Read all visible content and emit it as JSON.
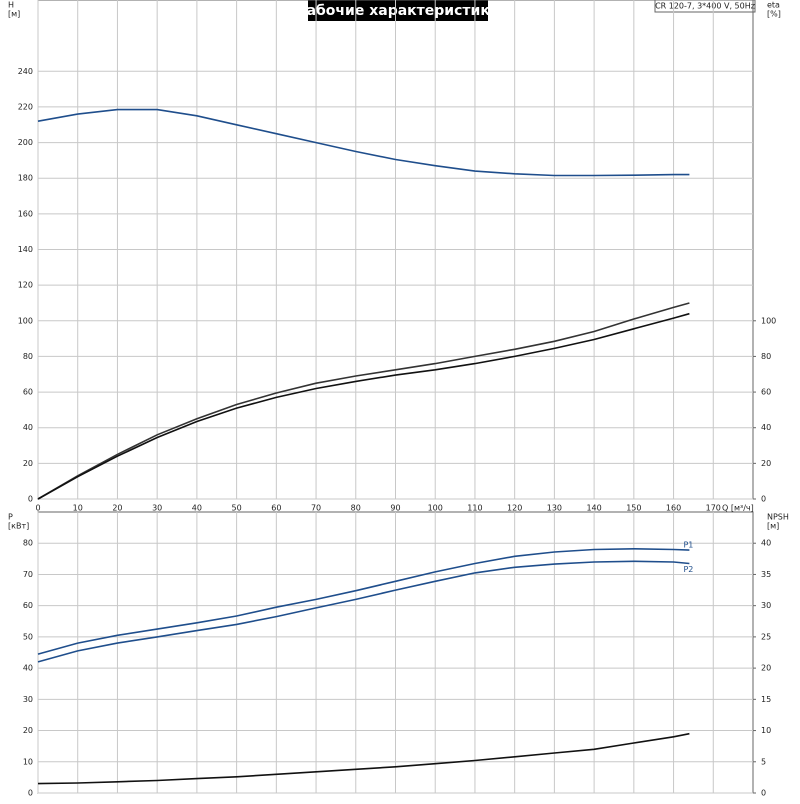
{
  "chart_data": [
    {
      "type": "line",
      "title": "Рабочие характеристики",
      "annotation": "CR 120-7, 3*400 V, 50Hz",
      "ylabel": "H",
      "yunit": "[м]",
      "y2label": "eta",
      "y2unit": "[%]",
      "xlabel": "Q [м³/ч]",
      "x": [
        0,
        10,
        20,
        30,
        40,
        50,
        60,
        70,
        80,
        90,
        100,
        110,
        120,
        130,
        140,
        150,
        160,
        164
      ],
      "xlim": [
        0,
        180
      ],
      "xticks": [
        0,
        10,
        20,
        30,
        40,
        50,
        60,
        70,
        80,
        90,
        100,
        110,
        120,
        130,
        140,
        150,
        160,
        170
      ],
      "ylim": [
        0,
        280
      ],
      "yticks": [
        0,
        20,
        40,
        60,
        80,
        100,
        120,
        140,
        160,
        180,
        200,
        220,
        240
      ],
      "y2lim": [
        0,
        280
      ],
      "y2ticks": [
        0,
        20,
        40,
        60,
        80,
        100
      ],
      "grid": true,
      "xtick_labels": true,
      "series": [
        {
          "color": "#1f4e8c",
          "values": [
            212,
            216,
            218.5,
            218.5,
            215,
            210,
            205,
            200,
            195,
            190.5,
            187,
            184,
            182.5,
            181.5,
            181.5,
            181.7,
            182,
            182
          ]
        },
        {
          "color": "#333333",
          "axis": "y2",
          "values": [
            0,
            13,
            25,
            36,
            45,
            53,
            59.5,
            65,
            69,
            72.5,
            76,
            80,
            84,
            88.5,
            94,
            101,
            107.5,
            110
          ]
        },
        {
          "color": "#111111",
          "axis": "y2",
          "values": [
            0,
            12.5,
            24,
            34.5,
            43.5,
            51,
            57,
            62,
            66,
            69.5,
            72.5,
            76,
            80,
            84.5,
            89.5,
            95.5,
            101.5,
            104
          ]
        }
      ]
    },
    {
      "type": "line",
      "ylabel": "P",
      "yunit": "[кВт]",
      "y2label": "NPSH",
      "y2unit": "[м]",
      "x": [
        0,
        10,
        20,
        30,
        40,
        50,
        60,
        70,
        80,
        90,
        100,
        110,
        120,
        130,
        140,
        150,
        160,
        164
      ],
      "xlim": [
        0,
        180
      ],
      "xticks": [
        0,
        10,
        20,
        30,
        40,
        50,
        60,
        70,
        80,
        90,
        100,
        110,
        120,
        130,
        140,
        150,
        160,
        170
      ],
      "ylim": [
        0,
        90
      ],
      "yticks": [
        0,
        10,
        20,
        30,
        40,
        50,
        60,
        70,
        80
      ],
      "y2lim": [
        0,
        45
      ],
      "y2ticks": [
        0,
        5,
        10,
        15,
        20,
        25,
        30,
        35,
        40
      ],
      "grid": true,
      "xtick_labels": false,
      "series": [
        {
          "name": "P1",
          "color": "#1f4e8c",
          "values": [
            44.5,
            48,
            50.5,
            52.5,
            54.5,
            56.7,
            59.5,
            62,
            64.8,
            67.8,
            70.8,
            73.5,
            75.8,
            77.2,
            78,
            78.2,
            78,
            77.8
          ]
        },
        {
          "name": "P2",
          "color": "#1f4e8c",
          "values": [
            42,
            45.5,
            48,
            50,
            52,
            54,
            56.5,
            59.3,
            62,
            65,
            67.8,
            70.5,
            72.3,
            73.3,
            74,
            74.2,
            74,
            73.5
          ]
        },
        {
          "color": "#111111",
          "axis": "y2",
          "values": [
            1.5,
            1.6,
            1.8,
            2,
            2.3,
            2.6,
            3,
            3.4,
            3.8,
            4.2,
            4.7,
            5.2,
            5.8,
            6.4,
            7,
            8,
            9,
            9.5
          ]
        }
      ]
    }
  ]
}
